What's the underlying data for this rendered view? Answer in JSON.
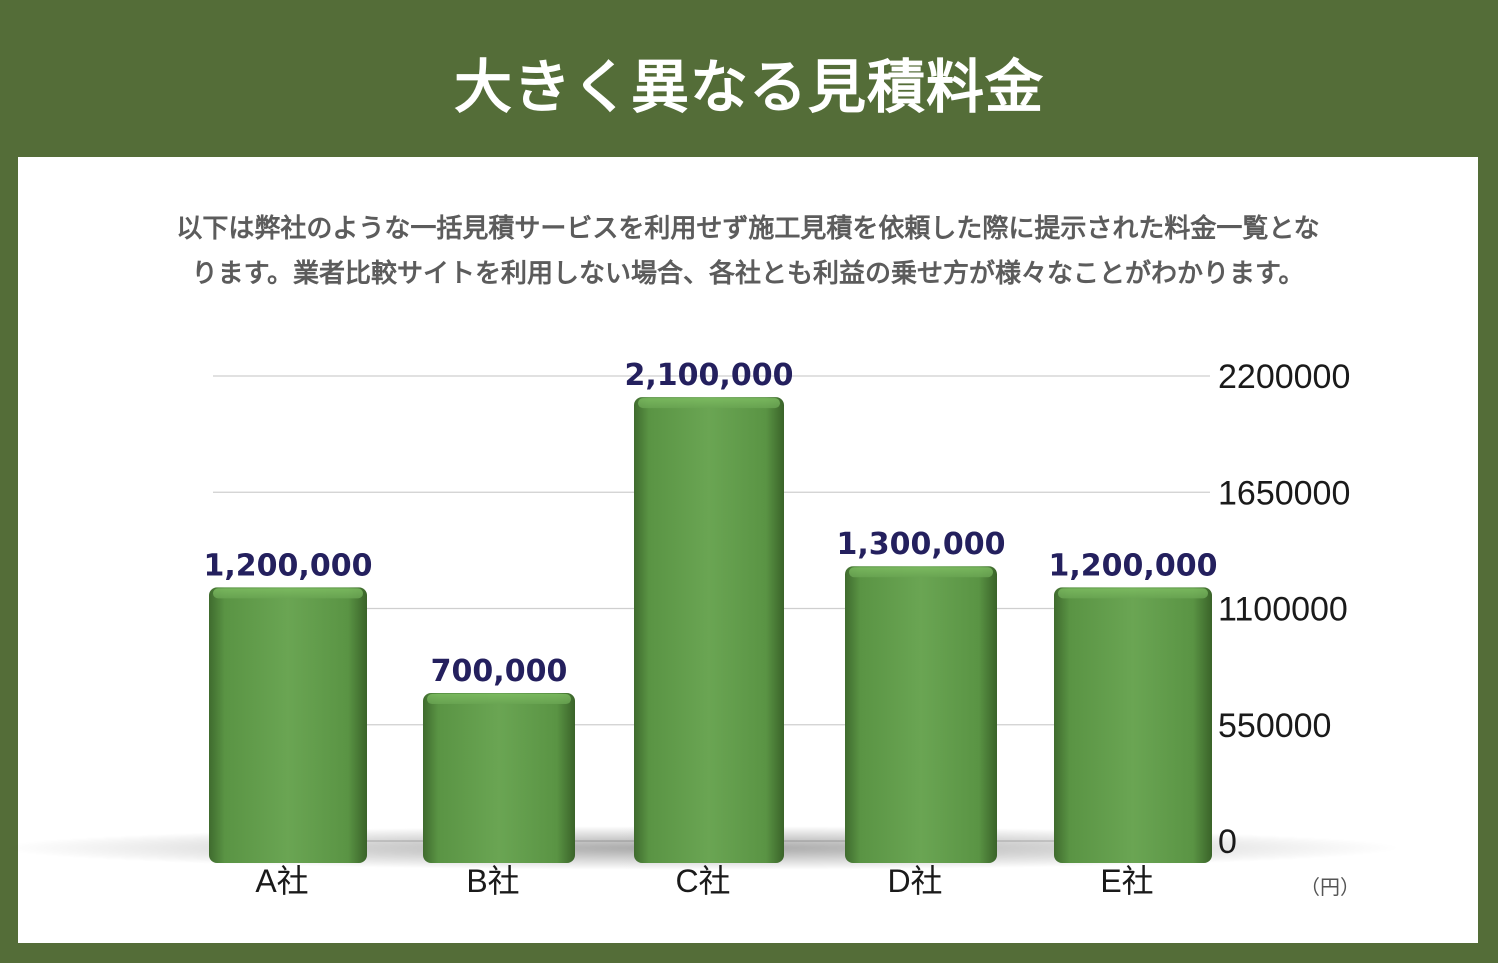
{
  "header": {
    "title": "大きく異なる見積料金"
  },
  "description": {
    "line1": "以下は弊社のような一括見積サービスを利用せず施工見積を依頼した際に提示された料金一覧とな",
    "line2": "ります。業者比較サイトを利用しない場合、各社とも利益の乗せ方が様々なことがわかります。"
  },
  "colors": {
    "background": "#546d38",
    "bar": "#6aa553",
    "value_label": "#24205e"
  },
  "chart_data": {
    "type": "bar",
    "categories": [
      "A社",
      "B社",
      "C社",
      "D社",
      "E社"
    ],
    "values": [
      1200000,
      700000,
      2100000,
      1300000,
      1200000
    ],
    "value_labels": [
      "1,200,000",
      "700,000",
      "2,100,000",
      "1,300,000",
      "1,200,000"
    ],
    "yticks": [
      0,
      550000,
      1100000,
      1650000,
      2200000
    ],
    "ylim": [
      0,
      2200000
    ],
    "y_axis_position": "right",
    "unit": "（円）",
    "grid": true
  }
}
